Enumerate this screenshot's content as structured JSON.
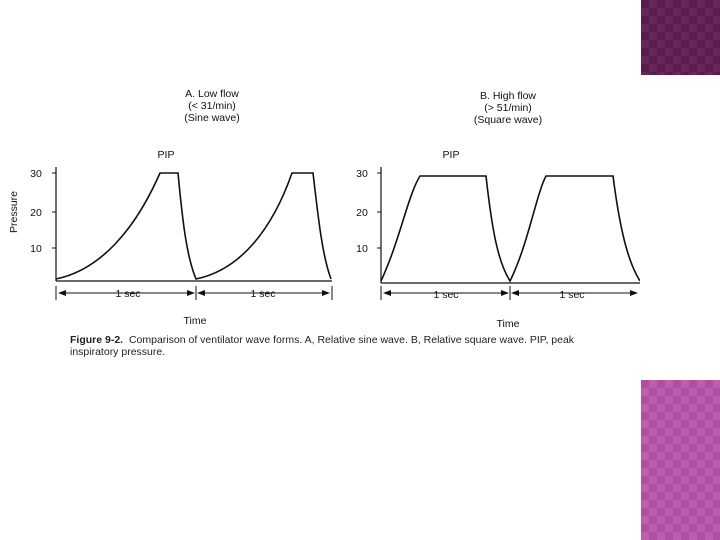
{
  "panels": [
    {
      "title_lines": [
        "A. Low flow",
        "(< 31/min)",
        "(Sine wave)"
      ],
      "peak_label": "PIP",
      "y_ticks": [
        "30",
        "20",
        "10"
      ],
      "y_axis_label": "Pressure",
      "duration_labels": [
        "1 sec",
        "1 sec"
      ],
      "x_axis_label": "Time"
    },
    {
      "title_lines": [
        "B. High flow",
        "(> 51/min)",
        "(Square wave)"
      ],
      "peak_label": "PIP",
      "y_ticks": [
        "30",
        "20",
        "10"
      ],
      "duration_labels": [
        "1 sec",
        "1 sec"
      ],
      "x_axis_label": "Time"
    }
  ],
  "caption": {
    "label": "Figure 9-2.",
    "text": "Comparison of ventilator wave forms. A, Relative sine wave. B, Relative square wave. PIP, peak inspiratory pressure."
  },
  "colors": {
    "ink": "#111111",
    "decor_top": "#5c1b4e",
    "decor_bottom": "#b24fa4"
  }
}
